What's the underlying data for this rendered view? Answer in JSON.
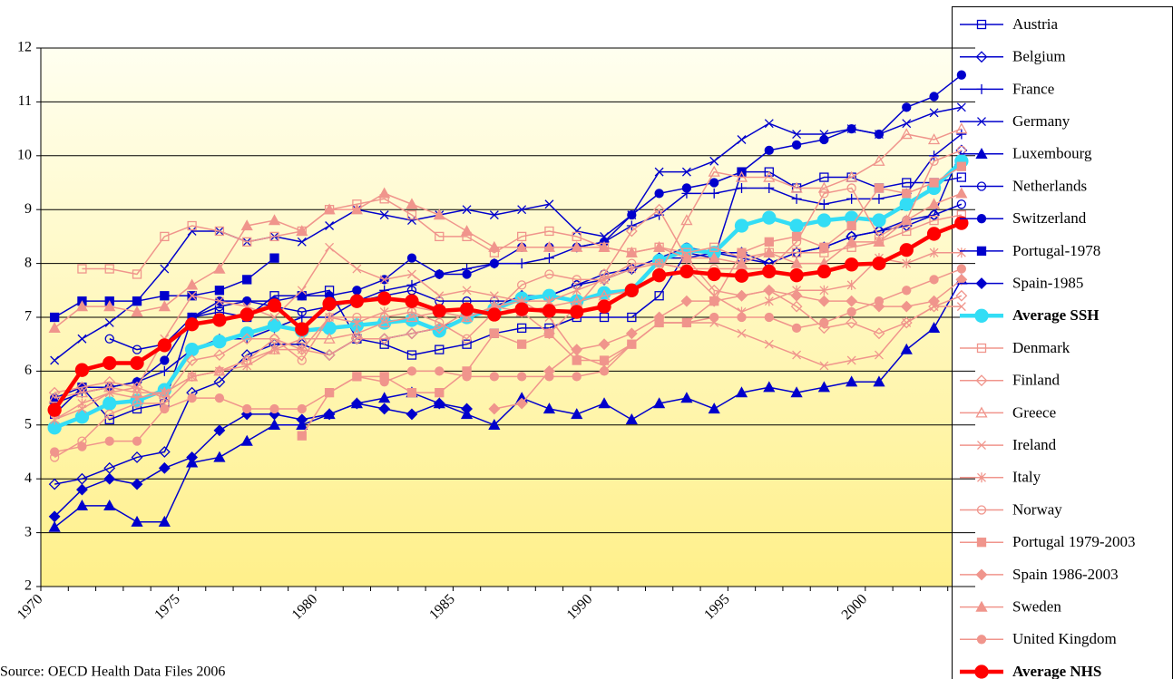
{
  "chart_data": {
    "type": "line",
    "source": "Source: OECD Health Data Files 2006",
    "categories": [
      "1970",
      null,
      null,
      null,
      null,
      "1975",
      null,
      null,
      null,
      null,
      "1980",
      null,
      null,
      null,
      null,
      "1985",
      null,
      null,
      null,
      null,
      "1990",
      null,
      null,
      null,
      null,
      "1995",
      null,
      null,
      null,
      null,
      "2000",
      null,
      null,
      null
    ],
    "ylim": [
      2,
      12
    ],
    "yticks": [
      2,
      3,
      4,
      5,
      6,
      7,
      8,
      9,
      10,
      11,
      12
    ],
    "grid": true,
    "legend": "right",
    "series": [
      {
        "name": "Austria",
        "color": "#0000cc",
        "marker": "square",
        "filled": false,
        "line_width": 1.5,
        "values": [
          5.2,
          5.7,
          5.1,
          5.3,
          5.4,
          7.0,
          7.1,
          7.0,
          7.4,
          7.4,
          7.5,
          6.6,
          6.5,
          6.3,
          6.4,
          6.5,
          6.7,
          6.8,
          6.8,
          7.0,
          7.0,
          7.0,
          7.4,
          8.2,
          8.1,
          9.7,
          9.7,
          9.4,
          9.6,
          9.6,
          9.4,
          9.5,
          9.5,
          9.6
        ]
      },
      {
        "name": "Belgium",
        "color": "#0000cc",
        "marker": "diamond",
        "filled": false,
        "line_width": 1.5,
        "values": [
          3.9,
          4.0,
          4.2,
          4.4,
          4.5,
          5.6,
          5.8,
          6.3,
          6.5,
          6.5,
          6.3,
          6.6,
          6.6,
          6.7,
          6.8,
          7.0,
          7.2,
          7.4,
          7.4,
          7.6,
          7.7,
          7.9,
          8.1,
          8.1,
          8.2,
          8.2,
          8.0,
          8.2,
          8.3,
          8.5,
          8.6,
          8.7,
          8.9,
          10.1
        ]
      },
      {
        "name": "France",
        "color": "#0000cc",
        "marker": "plus",
        "filled": false,
        "line_width": 1.5,
        "values": [
          5.4,
          5.6,
          5.7,
          5.8,
          6.0,
          6.4,
          6.6,
          6.6,
          6.8,
          7.0,
          7.0,
          7.3,
          7.5,
          7.6,
          7.8,
          7.9,
          8.0,
          8.0,
          8.1,
          8.3,
          8.4,
          8.7,
          8.9,
          9.3,
          9.3,
          9.4,
          9.4,
          9.2,
          9.1,
          9.2,
          9.2,
          9.3,
          10.0,
          10.4
        ]
      },
      {
        "name": "Germany",
        "color": "#0000cc",
        "marker": "x",
        "filled": false,
        "line_width": 1.5,
        "values": [
          6.2,
          6.6,
          6.9,
          7.3,
          7.9,
          8.6,
          8.6,
          8.4,
          8.5,
          8.4,
          8.7,
          9.0,
          8.9,
          8.8,
          8.9,
          9.0,
          8.9,
          9.0,
          9.1,
          8.6,
          8.5,
          8.9,
          9.7,
          9.7,
          9.9,
          10.3,
          10.6,
          10.4,
          10.4,
          10.5,
          10.4,
          10.6,
          10.8,
          10.9
        ]
      },
      {
        "name": "Luxembourg",
        "color": "#0000cc",
        "marker": "triangle",
        "filled": true,
        "line_width": 1.5,
        "values": [
          3.1,
          3.5,
          3.5,
          3.2,
          3.2,
          4.3,
          4.4,
          4.7,
          5.0,
          5.0,
          5.2,
          5.4,
          5.5,
          5.6,
          5.4,
          5.2,
          5.0,
          5.5,
          5.3,
          5.2,
          5.4,
          5.1,
          5.4,
          5.5,
          5.3,
          5.6,
          5.7,
          5.6,
          5.7,
          5.8,
          5.8,
          6.4,
          6.8,
          7.7
        ]
      },
      {
        "name": "Netherlands",
        "color": "#0000cc",
        "marker": "circle",
        "filled": false,
        "line_width": 1.5,
        "values": [
          null,
          null,
          6.6,
          6.4,
          6.5,
          7.0,
          7.2,
          7.3,
          7.2,
          7.1,
          7.2,
          7.3,
          7.4,
          7.5,
          7.3,
          7.3,
          7.3,
          7.3,
          7.4,
          7.6,
          7.8,
          7.9,
          8.1,
          8.3,
          8.2,
          8.1,
          8.0,
          8.2,
          8.3,
          8.5,
          8.6,
          8.8,
          8.9,
          9.1
        ]
      },
      {
        "name": "Switzerland",
        "color": "#0000cc",
        "marker": "circle",
        "filled": true,
        "line_width": 1.5,
        "values": [
          5.5,
          5.7,
          5.7,
          5.8,
          6.2,
          7.0,
          7.3,
          7.3,
          7.3,
          7.4,
          7.4,
          7.5,
          7.7,
          8.1,
          7.8,
          7.8,
          8.0,
          8.3,
          8.3,
          8.3,
          8.4,
          8.9,
          9.3,
          9.4,
          9.5,
          9.7,
          10.1,
          10.2,
          10.3,
          10.5,
          10.4,
          10.9,
          11.1,
          11.5
        ]
      },
      {
        "name": "Portugal-1978",
        "color": "#0000cc",
        "marker": "square",
        "filled": true,
        "line_width": 1.5,
        "values": [
          7.0,
          7.3,
          7.3,
          7.3,
          7.4,
          7.4,
          7.5,
          7.7,
          8.1,
          null,
          null,
          null,
          null,
          null,
          null,
          null,
          null,
          null,
          null,
          null,
          null,
          null,
          null,
          null,
          null,
          null,
          null,
          null,
          null,
          null,
          null,
          null,
          null,
          null
        ]
      },
      {
        "name": "Spain-1985",
        "color": "#0000cc",
        "marker": "diamond",
        "filled": true,
        "line_width": 1.5,
        "values": [
          3.3,
          3.8,
          4.0,
          3.9,
          4.2,
          4.4,
          4.9,
          5.2,
          5.2,
          5.1,
          5.2,
          5.4,
          5.3,
          5.2,
          5.4,
          5.3,
          null,
          null,
          null,
          null,
          null,
          null,
          null,
          null,
          null,
          null,
          null,
          null,
          null,
          null,
          null,
          null,
          null,
          null
        ]
      },
      {
        "name": "Average SSH",
        "color": "#33ddf5",
        "marker": "circle",
        "filled": true,
        "line_width": 4.5,
        "values": [
          4.95,
          5.15,
          5.4,
          5.45,
          5.65,
          6.4,
          6.55,
          6.7,
          6.85,
          6.75,
          6.8,
          6.85,
          6.9,
          6.95,
          6.75,
          7.0,
          7.15,
          7.35,
          7.4,
          7.3,
          7.45,
          7.5,
          8.05,
          8.25,
          8.2,
          8.7,
          8.85,
          8.7,
          8.8,
          8.85,
          8.8,
          9.1,
          9.4,
          9.9
        ]
      },
      {
        "name": "Denmark",
        "color": "#f0958c",
        "marker": "square",
        "filled": false,
        "line_width": 1.5,
        "values": [
          null,
          7.9,
          7.9,
          7.8,
          8.5,
          8.7,
          8.6,
          8.4,
          8.5,
          8.6,
          9.0,
          9.1,
          9.2,
          8.9,
          8.5,
          8.5,
          8.2,
          8.5,
          8.6,
          8.5,
          8.3,
          8.2,
          8.3,
          8.2,
          8.3,
          8.1,
          8.2,
          8.2,
          8.2,
          8.3,
          8.4,
          8.6,
          8.8,
          8.9
        ]
      },
      {
        "name": "Finland",
        "color": "#f0958c",
        "marker": "diamond",
        "filled": false,
        "line_width": 1.5,
        "values": [
          5.6,
          5.7,
          5.8,
          5.7,
          5.5,
          6.2,
          6.3,
          6.6,
          6.6,
          6.4,
          6.3,
          6.6,
          6.6,
          6.7,
          6.8,
          7.1,
          7.1,
          7.1,
          6.7,
          7.2,
          7.8,
          8.6,
          9.0,
          8.1,
          7.5,
          7.4,
          7.5,
          7.2,
          6.8,
          6.9,
          6.7,
          6.9,
          7.2,
          7.4
        ]
      },
      {
        "name": "Greece",
        "color": "#f0958c",
        "marker": "triangle",
        "filled": false,
        "line_width": 1.5,
        "values": [
          5.5,
          5.6,
          5.7,
          5.6,
          5.6,
          5.9,
          6.0,
          6.2,
          6.4,
          6.6,
          6.6,
          6.7,
          6.9,
          7.0,
          7.1,
          7.0,
          7.2,
          7.1,
          7.2,
          7.3,
          7.4,
          7.5,
          7.8,
          8.8,
          9.7,
          9.6,
          9.6,
          9.4,
          9.4,
          9.6,
          9.9,
          10.4,
          10.3,
          10.5
        ]
      },
      {
        "name": "Ireland",
        "color": "#f0958c",
        "marker": "x",
        "filled": false,
        "line_width": 1.5,
        "values": [
          5.1,
          5.3,
          5.6,
          5.7,
          6.6,
          7.4,
          7.3,
          7.2,
          7.0,
          7.5,
          8.3,
          7.9,
          7.7,
          7.8,
          7.4,
          7.5,
          7.4,
          7.3,
          7.0,
          6.3,
          6.1,
          6.5,
          6.9,
          6.9,
          6.9,
          6.7,
          6.5,
          6.3,
          6.1,
          6.2,
          6.3,
          6.9,
          7.2,
          7.2
        ]
      },
      {
        "name": "Italy",
        "color": "#f0958c",
        "marker": "asterisk",
        "filled": false,
        "line_width": 1.5,
        "values": [
          5.1,
          5.4,
          5.6,
          5.5,
          5.6,
          5.9,
          6.0,
          6.1,
          6.4,
          6.4,
          7.0,
          6.9,
          7.1,
          7.2,
          7.1,
          7.0,
          7.2,
          7.3,
          7.3,
          7.5,
          7.7,
          7.9,
          8.0,
          7.9,
          7.4,
          7.1,
          7.3,
          7.5,
          7.5,
          7.6,
          8.1,
          8.0,
          8.2,
          8.2
        ]
      },
      {
        "name": "Norway",
        "color": "#f0958c",
        "marker": "circle",
        "filled": false,
        "line_width": 1.5,
        "values": [
          4.4,
          4.7,
          5.2,
          5.4,
          5.4,
          5.9,
          6.0,
          6.2,
          6.6,
          6.2,
          7.0,
          7.0,
          7.0,
          7.1,
          6.9,
          6.6,
          7.1,
          7.6,
          7.8,
          7.7,
          7.7,
          8.0,
          8.0,
          7.9,
          7.9,
          7.9,
          7.9,
          8.4,
          9.3,
          9.4,
          8.5,
          8.8,
          9.9,
          10.1
        ]
      },
      {
        "name": "Portugal 1979-2003",
        "color": "#f0958c",
        "marker": "square",
        "filled": true,
        "line_width": 1.5,
        "values": [
          null,
          null,
          null,
          null,
          null,
          null,
          null,
          null,
          null,
          4.8,
          5.6,
          5.9,
          5.9,
          5.6,
          5.6,
          6.0,
          6.7,
          6.5,
          6.7,
          6.2,
          6.2,
          6.5,
          6.9,
          6.9,
          7.3,
          8.2,
          8.4,
          8.5,
          8.3,
          8.7,
          9.4,
          9.3,
          9.5,
          9.8
        ]
      },
      {
        "name": "Spain 1986-2003",
        "color": "#f0958c",
        "marker": "diamond",
        "filled": true,
        "line_width": 1.5,
        "values": [
          null,
          null,
          null,
          null,
          null,
          null,
          null,
          null,
          null,
          null,
          null,
          null,
          null,
          null,
          null,
          null,
          5.3,
          5.4,
          6.0,
          6.4,
          6.5,
          6.7,
          7.0,
          7.3,
          7.3,
          7.4,
          7.5,
          7.4,
          7.3,
          7.3,
          7.2,
          7.2,
          7.3,
          7.7
        ]
      },
      {
        "name": "Sweden",
        "color": "#f0958c",
        "marker": "triangle",
        "filled": true,
        "line_width": 1.5,
        "values": [
          6.8,
          7.2,
          7.2,
          7.1,
          7.2,
          7.6,
          7.9,
          8.7,
          8.8,
          8.6,
          9.0,
          9.0,
          9.3,
          9.1,
          8.9,
          8.6,
          8.3,
          8.3,
          8.3,
          8.3,
          8.3,
          8.2,
          8.3,
          8.1,
          8.1,
          8.0,
          8.2,
          8.0,
          8.0,
          8.4,
          8.4,
          8.8,
          9.1,
          9.3
        ]
      },
      {
        "name": "United Kingdom",
        "color": "#f0958c",
        "marker": "circle",
        "filled": true,
        "line_width": 1.5,
        "values": [
          4.5,
          4.6,
          4.7,
          4.7,
          5.3,
          5.5,
          5.5,
          5.3,
          5.3,
          5.3,
          5.6,
          5.9,
          5.8,
          6.0,
          6.0,
          5.9,
          5.9,
          5.9,
          5.9,
          5.9,
          6.0,
          6.5,
          6.9,
          6.9,
          7.0,
          7.0,
          7.0,
          6.8,
          6.9,
          7.1,
          7.3,
          7.5,
          7.7,
          7.9
        ]
      },
      {
        "name": "Average NHS",
        "color": "#ff0000",
        "marker": "circle",
        "filled": true,
        "line_width": 4.5,
        "values": [
          5.28,
          6.02,
          6.15,
          6.15,
          6.48,
          6.87,
          6.95,
          7.05,
          7.22,
          6.78,
          7.25,
          7.3,
          7.35,
          7.3,
          7.12,
          7.15,
          7.05,
          7.15,
          7.12,
          7.1,
          7.2,
          7.5,
          7.78,
          7.85,
          7.8,
          7.77,
          7.85,
          7.78,
          7.85,
          7.98,
          8.0,
          8.25,
          8.55,
          8.75
        ]
      }
    ]
  }
}
